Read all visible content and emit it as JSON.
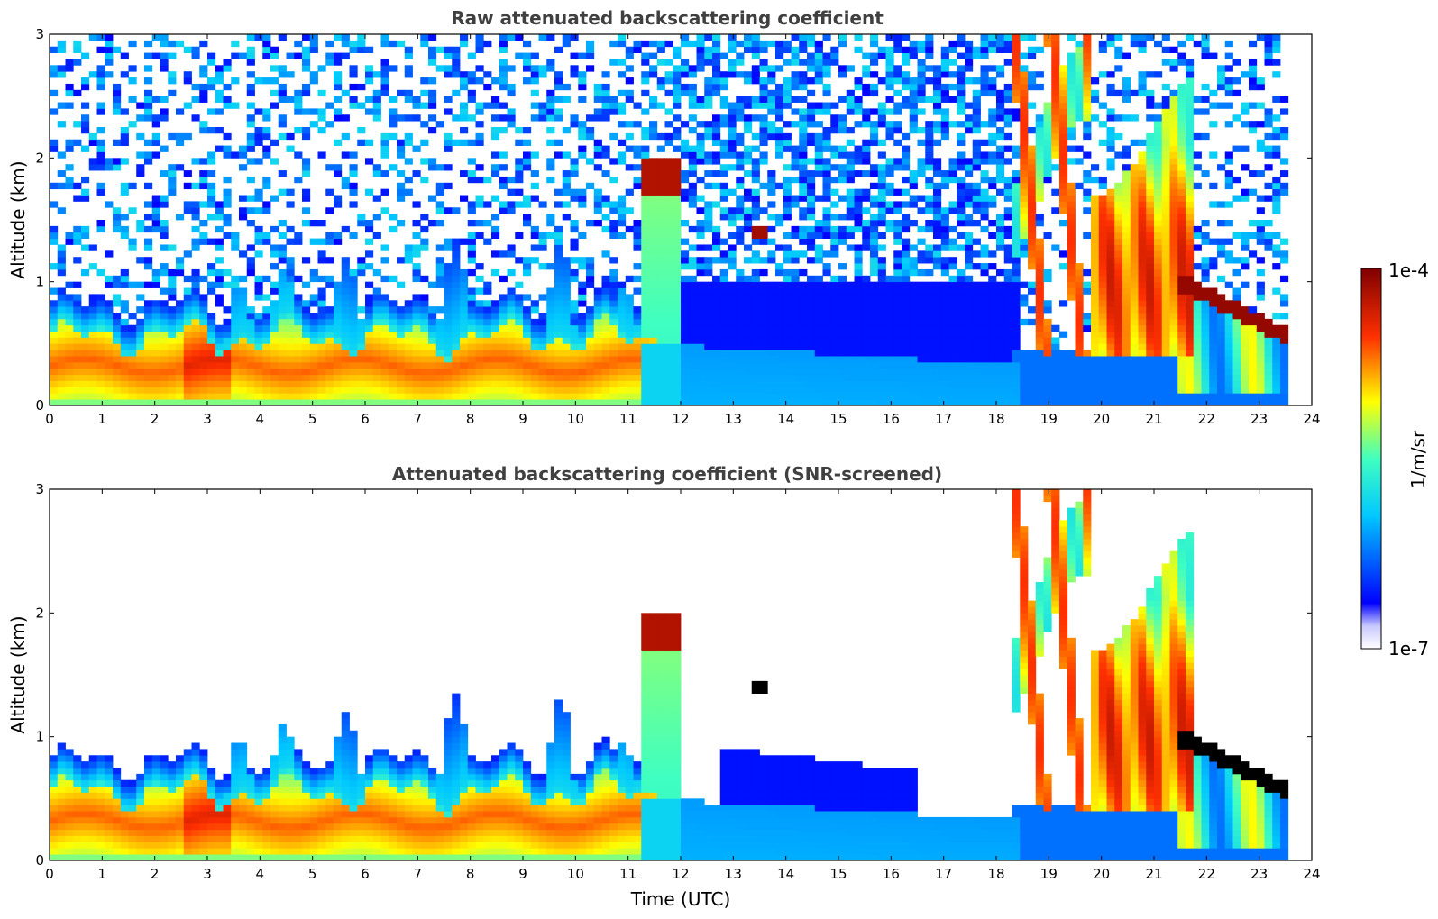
{
  "chart_data": [
    {
      "type": "heatmap",
      "title": "Raw attenuated backscattering coefficient",
      "xlabel": "",
      "ylabel": "Altitude (km)",
      "xlim": [
        0,
        24
      ],
      "ylim": [
        0,
        3
      ],
      "x_ticks": [
        0,
        1,
        2,
        3,
        4,
        5,
        6,
        7,
        8,
        9,
        10,
        11,
        12,
        13,
        14,
        15,
        16,
        17,
        18,
        19,
        20,
        21,
        22,
        23,
        24
      ],
      "y_ticks": [
        0,
        1,
        2,
        3
      ],
      "grid": false,
      "colorscale": "jet",
      "features": [
        {
          "name": "boundary layer aerosol",
          "t_start": 0,
          "t_end": 11.5,
          "top_km": 0.6,
          "level": 0.7
        },
        {
          "name": "boundary layer aerosol",
          "t_start": 11.5,
          "t_end": 23.6,
          "top_km": 0.5,
          "level": 0.32
        },
        {
          "name": "cloud",
          "t_start": 11.3,
          "t_end": 12.0,
          "bottom_km": 1.7,
          "top_km": 2.0,
          "level": 0.95
        },
        {
          "name": "cloud",
          "t_start": 13.3,
          "t_end": 13.6,
          "bottom_km": 1.35,
          "top_km": 1.45,
          "level": 0.95
        },
        {
          "name": "cloud",
          "t_start": 18.3,
          "t_end": 21.8,
          "bottom_km": 0.5,
          "top_km": 3.0,
          "level": 0.85
        },
        {
          "name": "cloud",
          "t_start": 21.5,
          "t_end": 23.6,
          "bottom_km": 0.5,
          "top_km": 1.0,
          "level": 0.95
        }
      ]
    },
    {
      "type": "heatmap",
      "title": "Attenuated backscattering coefficient (SNR-screened)",
      "xlabel": "Time (UTC)",
      "ylabel": "Altitude (km)",
      "xlim": [
        0,
        24
      ],
      "ylim": [
        0,
        3
      ],
      "x_ticks": [
        0,
        1,
        2,
        3,
        4,
        5,
        6,
        7,
        8,
        9,
        10,
        11,
        12,
        13,
        14,
        15,
        16,
        17,
        18,
        19,
        20,
        21,
        22,
        23,
        24
      ],
      "y_ticks": [
        0,
        1,
        2,
        3
      ],
      "grid": false,
      "colorscale": "jet",
      "screened": true
    }
  ],
  "colorbar": {
    "label": "1/m/sr",
    "max_label": "1e-4",
    "min_label": "1e-7",
    "colors": [
      "#eeeeff",
      "#0000ff",
      "#00ffff",
      "#ffff00",
      "#ff0000",
      "#800000"
    ]
  }
}
